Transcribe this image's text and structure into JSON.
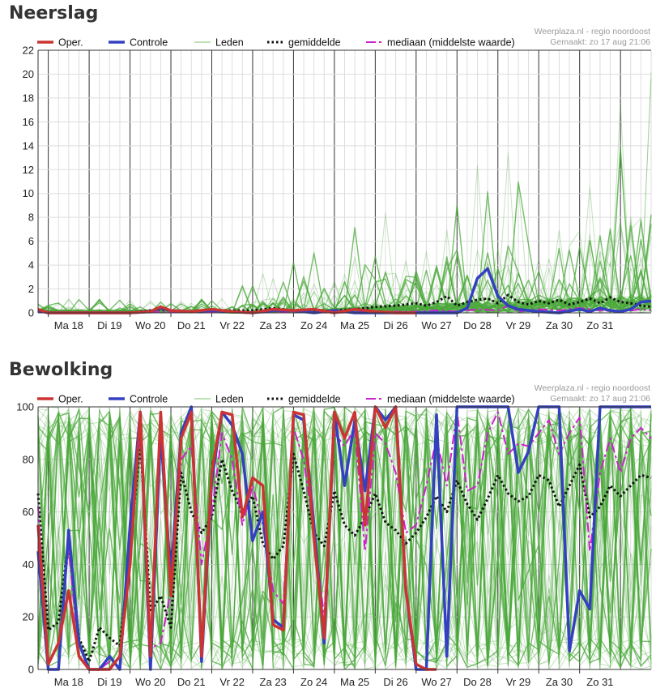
{
  "chart_data": [
    {
      "id": "rain",
      "type": "line",
      "title": "Neerslag",
      "ylim": [
        0,
        22
      ],
      "yticks": [
        0,
        2,
        4,
        6,
        8,
        10,
        12,
        14,
        16,
        18,
        20,
        22
      ],
      "x_day_labels": [
        "Ma 18",
        "Di 19",
        "Wo 20",
        "Do 21",
        "Vr 22",
        "Za 23",
        "Zo 24",
        "Ma 25",
        "Di 26",
        "Wo 27",
        "Do 28",
        "Vr 29",
        "Za 30",
        "Zo 31"
      ],
      "x_units": "days since the first day line",
      "xlim": [
        -0.25,
        14.75
      ],
      "grid": true,
      "legend": [
        "Oper.",
        "Controle",
        "Leden",
        "gemiddelde",
        "mediaan (middelste waarde)"
      ],
      "legend_placement": "top",
      "source": "Weerplaza.nl - regio noordoost",
      "made": "Gemaakt: zo 17 aug 21:06",
      "colors": {
        "oper": "#cc3333",
        "controle": "#3340c0",
        "leden": "#4aa83a",
        "gemiddelde": "#111111",
        "mediaan": "#cc22cc"
      },
      "member_count": 50,
      "member_seed": 7,
      "series": [
        {
          "name": "Oper.",
          "x": [
            -0.25,
            0,
            0.5,
            1,
            1.5,
            2,
            2.5,
            2.75,
            3,
            3.5,
            4,
            4.5,
            5,
            5.5,
            6,
            6.5,
            7,
            7.5,
            8,
            8.5,
            9
          ],
          "y": [
            0.3,
            0,
            0,
            0,
            0,
            0,
            0.1,
            0.5,
            0.2,
            0.1,
            0.3,
            0.1,
            0,
            0.3,
            0.2,
            0.3,
            0,
            0.3,
            0.1,
            0,
            0
          ]
        },
        {
          "name": "Controle",
          "x": [
            -0.25,
            0,
            1,
            2,
            2.5,
            2.75,
            3,
            3.5,
            4,
            5,
            5.5,
            6,
            6.5,
            7,
            7.5,
            8,
            8.5,
            9,
            9.5,
            10,
            10.25,
            10.5,
            10.75,
            11,
            11.25,
            11.5,
            12,
            12.5,
            13,
            13.25,
            13.5,
            13.75,
            14,
            14.25,
            14.5,
            14.75
          ],
          "y": [
            0.2,
            0,
            0,
            0,
            0.1,
            0.4,
            0.2,
            0.1,
            0.2,
            0,
            0.2,
            0.2,
            0,
            0.2,
            0,
            0,
            0,
            0,
            0,
            0,
            0.4,
            2.9,
            3.7,
            1.4,
            0.6,
            0.3,
            0.1,
            0,
            0.3,
            0.1,
            0.4,
            0.2,
            0.1,
            0.3,
            0.9,
            1.0
          ]
        },
        {
          "name": "gemiddelde",
          "x": [
            -0.25,
            0,
            1,
            2,
            2.75,
            3,
            3.5,
            4,
            4.5,
            5,
            5.5,
            6,
            6.5,
            7,
            7.5,
            8,
            8.5,
            9,
            9.25,
            9.5,
            9.75,
            10,
            10.25,
            10.5,
            10.75,
            11,
            11.25,
            11.5,
            11.75,
            12,
            12.25,
            12.5,
            12.75,
            13,
            13.25,
            13.5,
            13.75,
            14,
            14.25,
            14.5,
            14.75
          ],
          "y": [
            0.2,
            0,
            0,
            0,
            0.3,
            0.2,
            0.1,
            0.2,
            0.2,
            0.2,
            0.4,
            0.2,
            0.1,
            0.2,
            0.3,
            0.5,
            0.6,
            0.8,
            0.6,
            0.9,
            1.4,
            0.6,
            0.9,
            1.1,
            1.2,
            0.8,
            1.5,
            0.9,
            0.7,
            1.0,
            0.8,
            1.1,
            0.7,
            0.9,
            1.2,
            0.8,
            1.3,
            0.9,
            0.8,
            0.6,
            0.5
          ]
        },
        {
          "name": "mediaan (middelste waarde)",
          "x": [
            -0.25,
            0,
            1,
            2,
            3,
            4,
            5,
            6,
            7,
            8,
            9,
            9.5,
            10,
            10.5,
            11,
            11.25,
            11.5,
            12,
            12.5,
            13,
            13.5,
            14,
            14.5,
            14.75
          ],
          "y": [
            0.1,
            0,
            0,
            0,
            0.1,
            0.1,
            0,
            0.1,
            0,
            0.1,
            0.1,
            0.2,
            0.1,
            0.3,
            0.2,
            0.6,
            0.1,
            0.3,
            0.2,
            0.4,
            0.2,
            0.1,
            0.3,
            0.2
          ]
        }
      ]
    },
    {
      "id": "cloud",
      "type": "line",
      "title": "Bewolking",
      "ylim": [
        0,
        100
      ],
      "yticks": [
        0,
        20,
        40,
        60,
        80,
        100
      ],
      "x_day_labels": [
        "Ma 18",
        "Di 19",
        "Wo 20",
        "Do 21",
        "Vr 22",
        "Za 23",
        "Zo 24",
        "Ma 25",
        "Di 26",
        "Wo 27",
        "Do 28",
        "Vr 29",
        "Za 30",
        "Zo 31"
      ],
      "x_units": "days since the first day line",
      "xlim": [
        -0.25,
        14.75
      ],
      "grid": true,
      "legend": [
        "Oper.",
        "Controle",
        "Leden",
        "gemiddelde",
        "mediaan (middelste waarde)"
      ],
      "legend_placement": "top",
      "source": "Weerplaza.nl - regio noordoost",
      "made": "Gemaakt: zo 17 aug 21:06",
      "colors": {
        "oper": "#cc3333",
        "controle": "#3340c0",
        "leden": "#4aa83a",
        "gemiddelde": "#111111",
        "mediaan": "#cc22cc"
      },
      "member_count": 50,
      "member_seed": 23,
      "series": [
        {
          "name": "Oper.",
          "x": [
            -0.25,
            0,
            0.25,
            0.5,
            0.75,
            1,
            1.25,
            1.5,
            1.75,
            2,
            2.25,
            2.5,
            2.75,
            3,
            3.25,
            3.5,
            3.75,
            4,
            4.25,
            4.5,
            4.75,
            5,
            5.25,
            5.5,
            5.75,
            6,
            6.25,
            6.5,
            6.75,
            7,
            7.25,
            7.5,
            7.75,
            8,
            8.25,
            8.5,
            8.75,
            9,
            9.25,
            9.5
          ],
          "y": [
            55,
            2,
            10,
            30,
            5,
            0,
            0,
            0,
            5,
            40,
            98,
            5,
            98,
            28,
            88,
            98,
            5,
            75,
            98,
            97,
            58,
            73,
            70,
            17,
            15,
            98,
            97,
            50,
            12,
            98,
            88,
            98,
            55,
            100,
            92,
            100,
            30,
            2,
            0,
            0
          ]
        },
        {
          "name": "Controle",
          "x": [
            -0.25,
            0,
            0.25,
            0.5,
            0.75,
            1,
            1.25,
            1.5,
            1.75,
            2,
            2.25,
            2.5,
            2.75,
            3,
            3.25,
            3.5,
            3.75,
            4,
            4.25,
            4.5,
            4.75,
            5,
            5.25,
            5.5,
            5.75,
            6,
            6.25,
            6.5,
            6.75,
            7,
            7.25,
            7.5,
            7.75,
            8,
            8.25,
            8.5,
            8.75,
            9,
            9.25,
            9.5,
            9.75,
            10,
            10.25,
            10.5,
            10.75,
            11,
            11.25,
            11.5,
            11.75,
            12,
            12.25,
            12.5,
            12.75,
            13,
            13.25,
            13.5,
            13.75,
            14,
            14.25,
            14.5,
            14.75
          ],
          "y": [
            45,
            0,
            0,
            53,
            10,
            0,
            0,
            5,
            0,
            55,
            98,
            0,
            90,
            35,
            90,
            100,
            3,
            72,
            98,
            93,
            82,
            49,
            60,
            19,
            16,
            97,
            95,
            55,
            10,
            98,
            70,
            95,
            68,
            100,
            95,
            100,
            30,
            0,
            0,
            97,
            5,
            100,
            100,
            100,
            100,
            100,
            100,
            75,
            83,
            100,
            100,
            100,
            7,
            30,
            23,
            100,
            100,
            100,
            100,
            100,
            100
          ]
        },
        {
          "name": "gemiddelde",
          "x": [
            -0.25,
            0,
            0.25,
            0.5,
            0.75,
            1,
            1.25,
            1.5,
            1.75,
            2,
            2.25,
            2.5,
            2.75,
            3,
            3.25,
            3.5,
            3.75,
            4,
            4.25,
            4.5,
            4.75,
            5,
            5.25,
            5.5,
            5.75,
            6,
            6.25,
            6.5,
            6.75,
            7,
            7.25,
            7.5,
            7.75,
            8,
            8.25,
            8.5,
            8.75,
            9,
            9.25,
            9.5,
            9.75,
            10,
            10.25,
            10.5,
            10.75,
            11,
            11.25,
            11.5,
            11.75,
            12,
            12.25,
            12.5,
            12.75,
            13,
            13.25,
            13.5,
            13.75,
            14,
            14.25,
            14.5,
            14.75
          ],
          "y": [
            67,
            15,
            18,
            50,
            12,
            3,
            16,
            12,
            9,
            45,
            87,
            22,
            28,
            16,
            75,
            60,
            52,
            58,
            80,
            68,
            60,
            66,
            48,
            42,
            47,
            82,
            68,
            52,
            47,
            68,
            55,
            51,
            58,
            67,
            56,
            53,
            48,
            52,
            58,
            66,
            60,
            72,
            63,
            57,
            65,
            74,
            67,
            64,
            66,
            74,
            72,
            62,
            70,
            78,
            58,
            62,
            70,
            66,
            70,
            74,
            73
          ]
        },
        {
          "name": "mediaan (middelste waarde)",
          "x": [
            -0.25,
            0,
            0.25,
            0.5,
            0.75,
            1,
            1.25,
            1.5,
            1.75,
            2,
            2.25,
            2.5,
            2.75,
            3,
            3.25,
            3.5,
            3.75,
            4,
            4.25,
            4.5,
            4.75,
            5,
            5.25,
            5.5,
            5.75,
            6,
            6.25,
            6.5,
            6.75,
            7,
            7.25,
            7.5,
            7.75,
            8,
            8.25,
            8.5,
            8.75,
            9,
            9.25,
            9.5,
            9.75,
            10,
            10.25,
            10.5,
            10.75,
            11,
            11.25,
            11.5,
            11.75,
            12,
            12.25,
            12.5,
            12.75,
            13,
            13.25,
            13.5,
            13.75,
            14,
            14.25,
            14.5,
            14.75
          ],
          "y": [
            62,
            3,
            10,
            46,
            5,
            0,
            0,
            3,
            0,
            45,
            90,
            8,
            10,
            30,
            80,
            85,
            40,
            60,
            90,
            80,
            55,
            70,
            55,
            30,
            25,
            92,
            80,
            52,
            20,
            90,
            85,
            92,
            45,
            90,
            86,
            75,
            52,
            55,
            70,
            88,
            70,
            98,
            68,
            70,
            90,
            98,
            82,
            86,
            85,
            90,
            95,
            82,
            90,
            96,
            45,
            75,
            88,
            75,
            88,
            92,
            88
          ]
        }
      ]
    }
  ]
}
